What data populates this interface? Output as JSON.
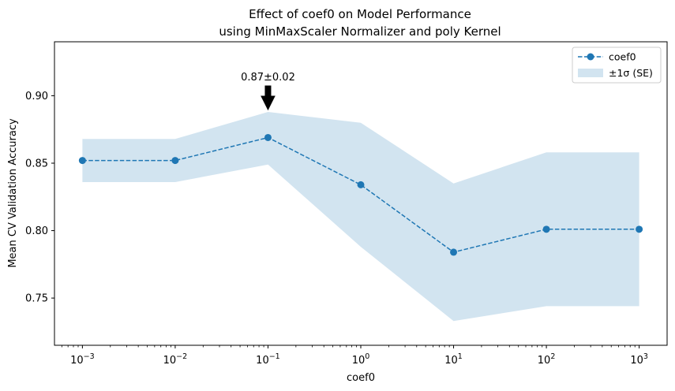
{
  "chart_data": {
    "type": "line",
    "title": "Effect of coef0 on Model Performance",
    "subtitle": "using MinMaxScaler Normalizer and poly Kernel",
    "xlabel": "coef0",
    "ylabel": "Mean CV Validation Accuracy",
    "x_scale": "log",
    "x": [
      0.001,
      0.01,
      0.1,
      1,
      10,
      100,
      1000
    ],
    "x_tick_labels": [
      {
        "base": "10",
        "exp": "−3"
      },
      {
        "base": "10",
        "exp": "−2"
      },
      {
        "base": "10",
        "exp": "−1"
      },
      {
        "base": "10",
        "exp": "0"
      },
      {
        "base": "10",
        "exp": "1"
      },
      {
        "base": "10",
        "exp": "2"
      },
      {
        "base": "10",
        "exp": "3"
      }
    ],
    "xlim": [
      0.0005,
      2000
    ],
    "ylim": [
      0.715,
      0.94
    ],
    "y_ticks": [
      0.75,
      0.8,
      0.85,
      0.9
    ],
    "y_tick_labels": [
      "0.75",
      "0.80",
      "0.85",
      "0.90"
    ],
    "series": [
      {
        "name": "coef0",
        "values": [
          0.852,
          0.852,
          0.869,
          0.834,
          0.784,
          0.801,
          0.801
        ],
        "color": "#1f77b4",
        "style": "dashed",
        "marker": "circle"
      }
    ],
    "band": {
      "name": "±1σ (SE)",
      "lower": [
        0.836,
        0.836,
        0.849,
        0.788,
        0.733,
        0.744,
        0.744
      ],
      "upper": [
        0.868,
        0.868,
        0.888,
        0.88,
        0.835,
        0.858,
        0.858
      ],
      "color": "#1f77b4",
      "opacity": 0.2
    },
    "annotation": {
      "text": "0.87±0.02",
      "x": 0.1,
      "y": 0.888,
      "arrow": true
    },
    "legend": {
      "position": "top-right",
      "entries": [
        "coef0",
        "±1σ (SE)"
      ]
    },
    "grid": false
  }
}
